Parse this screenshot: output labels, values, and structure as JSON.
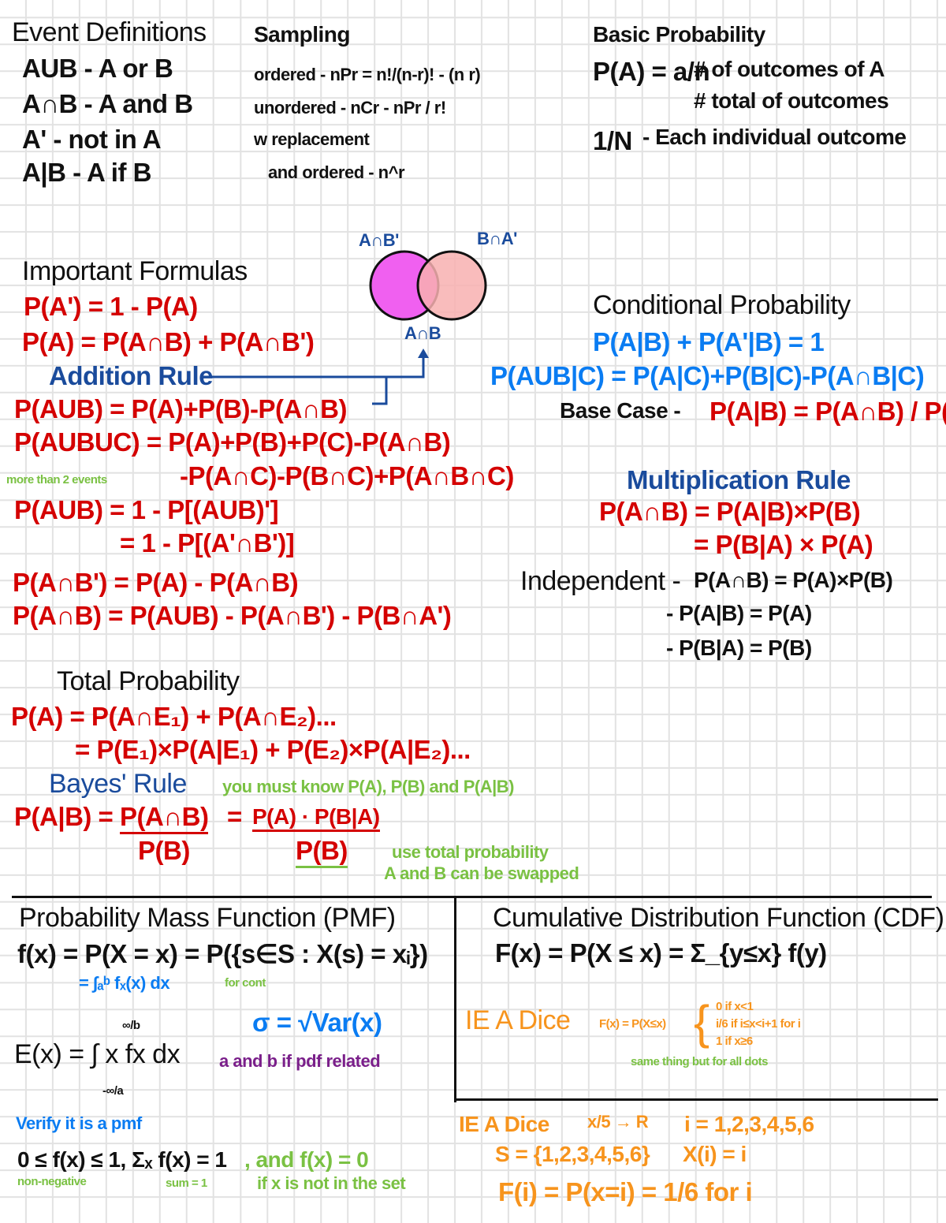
{
  "event_definitions": {
    "title": "Event Definitions",
    "items": [
      "AUB - A or B",
      "A∩B - A and B",
      "A' - not in A",
      "A|B - A if B"
    ]
  },
  "sampling": {
    "title": "Sampling",
    "ordered": "ordered - nPr = n!/(n-r)! - (n r)",
    "unordered": "unordered - nCr - nPr / r!",
    "replacement": "w replacement",
    "replacement_ordered": "and ordered - n^r",
    "frac_num": "n!",
    "frac_den": "r!"
  },
  "basic_probability": {
    "title": "Basic Probability",
    "formula": "P(A) = a/n",
    "num_note": "# of outcomes of A",
    "den_note": "# total of outcomes",
    "one_over_n": "1/N",
    "each_note": "- Each individual outcome"
  },
  "venn": {
    "label_a_not_b": "A∩B'",
    "label_b_not_a": "B∩A'",
    "label_intersection": "A∩B",
    "colors": {
      "a": "#f060f0",
      "b": "#f8b0b0"
    }
  },
  "important_formulas": {
    "title": "Important Formulas",
    "lines": [
      "P(A') = 1 - P(A)",
      "P(A) = P(A∩B) + P(A∩B')"
    ],
    "addition_rule": "Addition Rule",
    "addition_lines": [
      "P(AUB) = P(A)+P(B)-P(A∩B)",
      "P(AUBUC) = P(A)+P(B)+P(C)-P(A∩B)",
      "-P(A∩C)-P(B∩C)+P(A∩B∩C)"
    ],
    "more_than_2": "more than 2 events",
    "complement_lines": [
      "P(AUB) = 1 - P[(AUB)']",
      "= 1 - P[(A'∩B')]"
    ],
    "other_lines": [
      "P(A∩B') = P(A) - P(A∩B)",
      "P(A∩B) = P(AUB) - P(A∩B') - P(B∩A')"
    ]
  },
  "conditional_probability": {
    "title": "Conditional Probability",
    "lines": [
      "P(A|B) + P(A'|B) = 1",
      "P(AUB|C) = P(A|C)+P(B|C)-P(A∩B|C)"
    ],
    "base_case_label": "Base Case -",
    "base_case": "P(A|B) = P(A∩B) / P(B)"
  },
  "multiplication_rule": {
    "title": "Multiplication Rule",
    "lines": [
      "P(A∩B) = P(A|B)×P(B)",
      "= P(B|A) × P(A)"
    ],
    "independent_label": "Independent -",
    "independent_lines": [
      "P(A∩B) = P(A)×P(B)",
      "- P(A|B) = P(A)",
      "- P(B|A) = P(B)"
    ]
  },
  "total_probability": {
    "title": "Total Probability",
    "lines": [
      "P(A) = P(A∩E₁) + P(A∩E₂)...",
      "= P(E₁)×P(A|E₁) + P(E₂)×P(A|E₂)..."
    ]
  },
  "bayes_rule": {
    "title": "Bayes' Rule",
    "note": "you must know P(A), P(B) and P(A|B)",
    "lhs": "P(A|B) =",
    "frac1_num": "P(A∩B)",
    "frac1_den": "P(B)",
    "eq": "=",
    "frac2_num": "P(A) · P(B|A)",
    "frac2_den": "P(B)",
    "note2": "use total probability",
    "note3": "A and B can be swapped"
  },
  "pmf": {
    "title": "Probability Mass Function (PMF)",
    "formula": "f(x) = P(X = x) = P({s∈S : X(s) = xᵢ})",
    "integral": "= ∫ₐᵇ fₓ(x) dx",
    "integral_note": "for cont",
    "sigma": "σ = √Var(x)",
    "expectation": "E(x) = ∫ x fx dx",
    "limits": {
      "upper": "∞/b",
      "lower": "-∞/a"
    },
    "expectation_note": "a and b if pdf related",
    "verify_title": "Verify it is a pmf",
    "verify": "0 ≤ f(x) ≤ 1, Σₓ f(x) = 1",
    "non_negative": "non-negative",
    "sum_note": "sum = 1",
    "and_line": ", and f(x) = 0",
    "and_note": "if x is not in the set"
  },
  "cdf": {
    "title": "Cumulative Distribution Function (CDF)",
    "formula": "F(x) = P(X ≤ x) = Σ_{y≤x} f(y)",
    "ie_label": "IE A Dice",
    "ie_formula": "F(x) = P(X≤x)",
    "cases": [
      "0 if x<1",
      "i/6 if i≤x<i+1 for i",
      "1 if x≥6"
    ],
    "green_note": "same thing but for all dots",
    "dice_label": "IE A Dice",
    "dice_map": "x/5 → R",
    "i_values": "i = 1,2,3,4,5,6",
    "s_set": "S = {1,2,3,4,5,6}",
    "x_map": "X(i) = i",
    "f_line": "F(i) = P(x=i) = 1/6 for i"
  }
}
